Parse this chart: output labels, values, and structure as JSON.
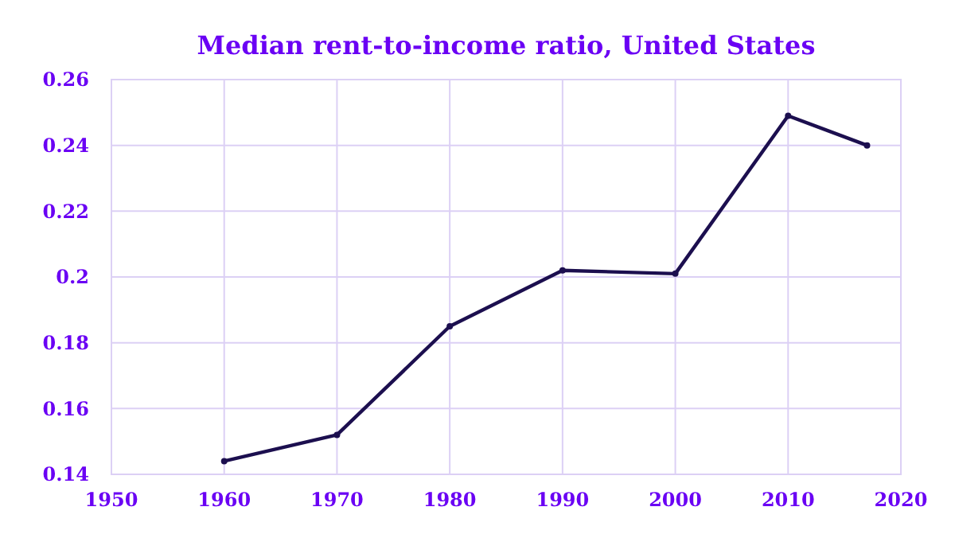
{
  "chart_data": {
    "type": "line",
    "title": "Median rent-to-income ratio, United States",
    "x": [
      1960,
      1970,
      1980,
      1990,
      2000,
      2010,
      2017
    ],
    "series": [
      {
        "color": "#1c0f4f",
        "values": [
          0.144,
          0.152,
          0.185,
          0.202,
          0.201,
          0.249,
          0.24
        ]
      }
    ],
    "xlim": [
      1950,
      2020
    ],
    "xticks": [
      1950,
      1960,
      1970,
      1980,
      1990,
      2000,
      2010,
      2020
    ],
    "ylim": [
      0.14,
      0.26
    ],
    "yticks": [
      0.14,
      0.16,
      0.18,
      {
        "value": 0.2,
        "label": "0.2"
      },
      0.22,
      0.24,
      0.26
    ],
    "grid": true,
    "marker": "circle",
    "line_style": "solid"
  }
}
